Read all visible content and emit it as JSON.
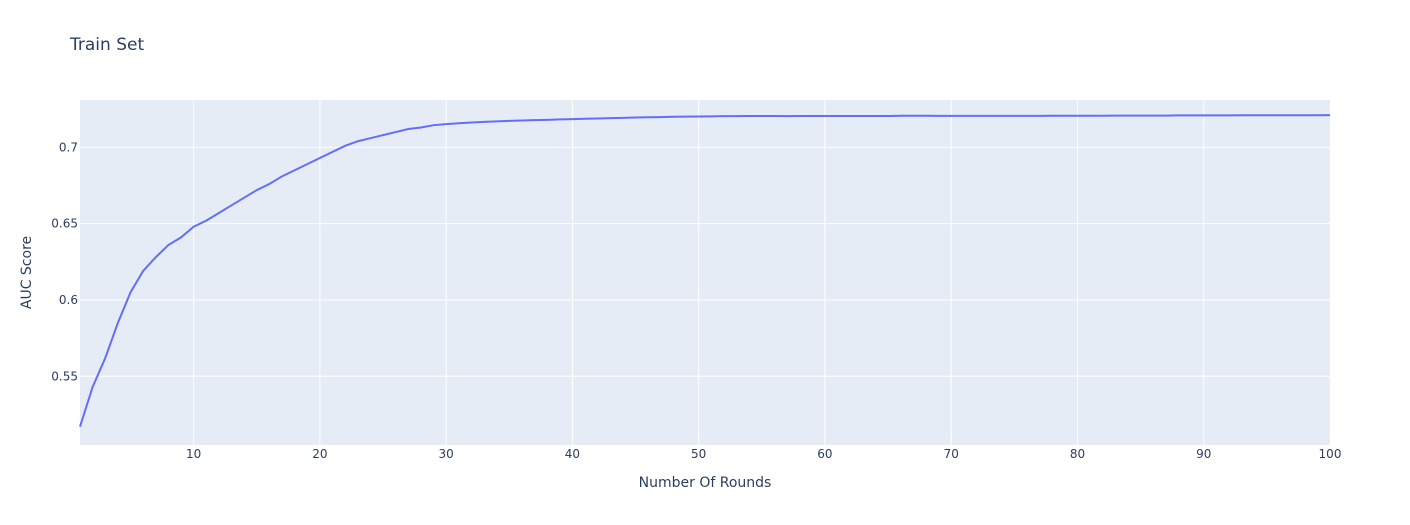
{
  "colors": {
    "plot_bg": "#e5ecf6",
    "grid": "#ffffff",
    "line": "#636efa",
    "text": "#2a3f5f"
  },
  "chart_data": {
    "type": "line",
    "title": "Train Set",
    "xlabel": "Number Of Rounds",
    "ylabel": "AUC Score",
    "xlim": [
      1,
      100
    ],
    "ylim": [
      0.505,
      0.731
    ],
    "x_ticks": [
      10,
      20,
      30,
      40,
      50,
      60,
      70,
      80,
      90,
      100
    ],
    "y_ticks": [
      0.55,
      0.6,
      0.65,
      0.7
    ],
    "x_tick_labels": [
      "10",
      "20",
      "30",
      "40",
      "50",
      "60",
      "70",
      "80",
      "90",
      "100"
    ],
    "y_tick_labels": [
      "0.55",
      "0.6",
      "0.65",
      "0.7"
    ],
    "grid": true,
    "legend": "none",
    "series": [
      {
        "x": [
          1,
          2,
          3,
          4,
          5,
          6,
          7,
          8,
          9,
          10,
          11,
          12,
          13,
          14,
          15,
          16,
          17,
          18,
          19,
          20,
          21,
          22,
          23,
          24,
          25,
          26,
          27,
          28,
          29,
          30,
          31,
          32,
          33,
          34,
          35,
          36,
          37,
          38,
          39,
          40,
          41,
          42,
          43,
          44,
          45,
          46,
          47,
          48,
          49,
          50,
          51,
          52,
          53,
          54,
          55,
          56,
          57,
          58,
          59,
          60,
          61,
          62,
          63,
          64,
          65,
          66,
          67,
          68,
          69,
          70,
          71,
          72,
          73,
          74,
          75,
          76,
          77,
          78,
          79,
          80,
          81,
          82,
          83,
          84,
          85,
          86,
          87,
          88,
          89,
          90,
          91,
          92,
          93,
          94,
          95,
          96,
          97,
          98,
          99,
          100
        ],
        "values": [
          0.517,
          0.543,
          0.562,
          0.585,
          0.605,
          0.619,
          0.628,
          0.636,
          0.641,
          0.648,
          0.652,
          0.657,
          0.662,
          0.667,
          0.672,
          0.676,
          0.681,
          0.685,
          0.689,
          0.693,
          0.697,
          0.701,
          0.704,
          0.706,
          0.708,
          0.71,
          0.712,
          0.713,
          0.7145,
          0.7152,
          0.7158,
          0.7163,
          0.7167,
          0.717,
          0.7173,
          0.7176,
          0.7178,
          0.718,
          0.7183,
          0.7185,
          0.7187,
          0.7189,
          0.7191,
          0.7193,
          0.7195,
          0.7197,
          0.7198,
          0.72,
          0.7201,
          0.7202,
          0.7203,
          0.7204,
          0.7204,
          0.7205,
          0.7205,
          0.7205,
          0.7204,
          0.7205,
          0.7205,
          0.7205,
          0.7205,
          0.7205,
          0.7205,
          0.7205,
          0.7205,
          0.7207,
          0.7207,
          0.7207,
          0.7206,
          0.7206,
          0.7206,
          0.7206,
          0.7206,
          0.7206,
          0.7206,
          0.7206,
          0.7206,
          0.7207,
          0.7207,
          0.7207,
          0.7207,
          0.7207,
          0.7208,
          0.7208,
          0.7208,
          0.7208,
          0.7208,
          0.7209,
          0.7209,
          0.7209,
          0.7209,
          0.7209,
          0.721,
          0.721,
          0.721,
          0.721,
          0.721,
          0.721,
          0.721,
          0.7211
        ]
      }
    ]
  }
}
